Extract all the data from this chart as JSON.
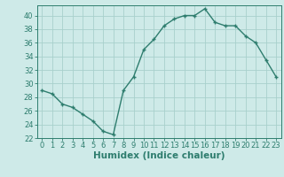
{
  "x": [
    0,
    1,
    2,
    3,
    4,
    5,
    6,
    7,
    8,
    9,
    10,
    11,
    12,
    13,
    14,
    15,
    16,
    17,
    18,
    19,
    20,
    21,
    22,
    23
  ],
  "y": [
    29,
    28.5,
    27,
    26.5,
    25.5,
    24.5,
    23,
    22.5,
    29,
    31,
    35,
    36.5,
    38.5,
    39.5,
    40,
    40,
    41,
    39,
    38.5,
    38.5,
    37,
    36,
    33.5,
    31
  ],
  "line_color": "#2e7d6e",
  "marker": "+",
  "marker_size": 3,
  "background_color": "#ceeae8",
  "grid_color": "#a8d0cc",
  "xlabel": "Humidex (Indice chaleur)",
  "xlim": [
    -0.5,
    23.5
  ],
  "ylim": [
    22,
    41.5
  ],
  "yticks": [
    22,
    24,
    26,
    28,
    30,
    32,
    34,
    36,
    38,
    40
  ],
  "xticks": [
    0,
    1,
    2,
    3,
    4,
    5,
    6,
    7,
    8,
    9,
    10,
    11,
    12,
    13,
    14,
    15,
    16,
    17,
    18,
    19,
    20,
    21,
    22,
    23
  ],
  "tick_label_fontsize": 6,
  "xlabel_fontsize": 7.5,
  "tick_color": "#2e7d6e",
  "axis_color": "#2e7d6e",
  "line_width": 1.0,
  "marker_edge_width": 1.0
}
